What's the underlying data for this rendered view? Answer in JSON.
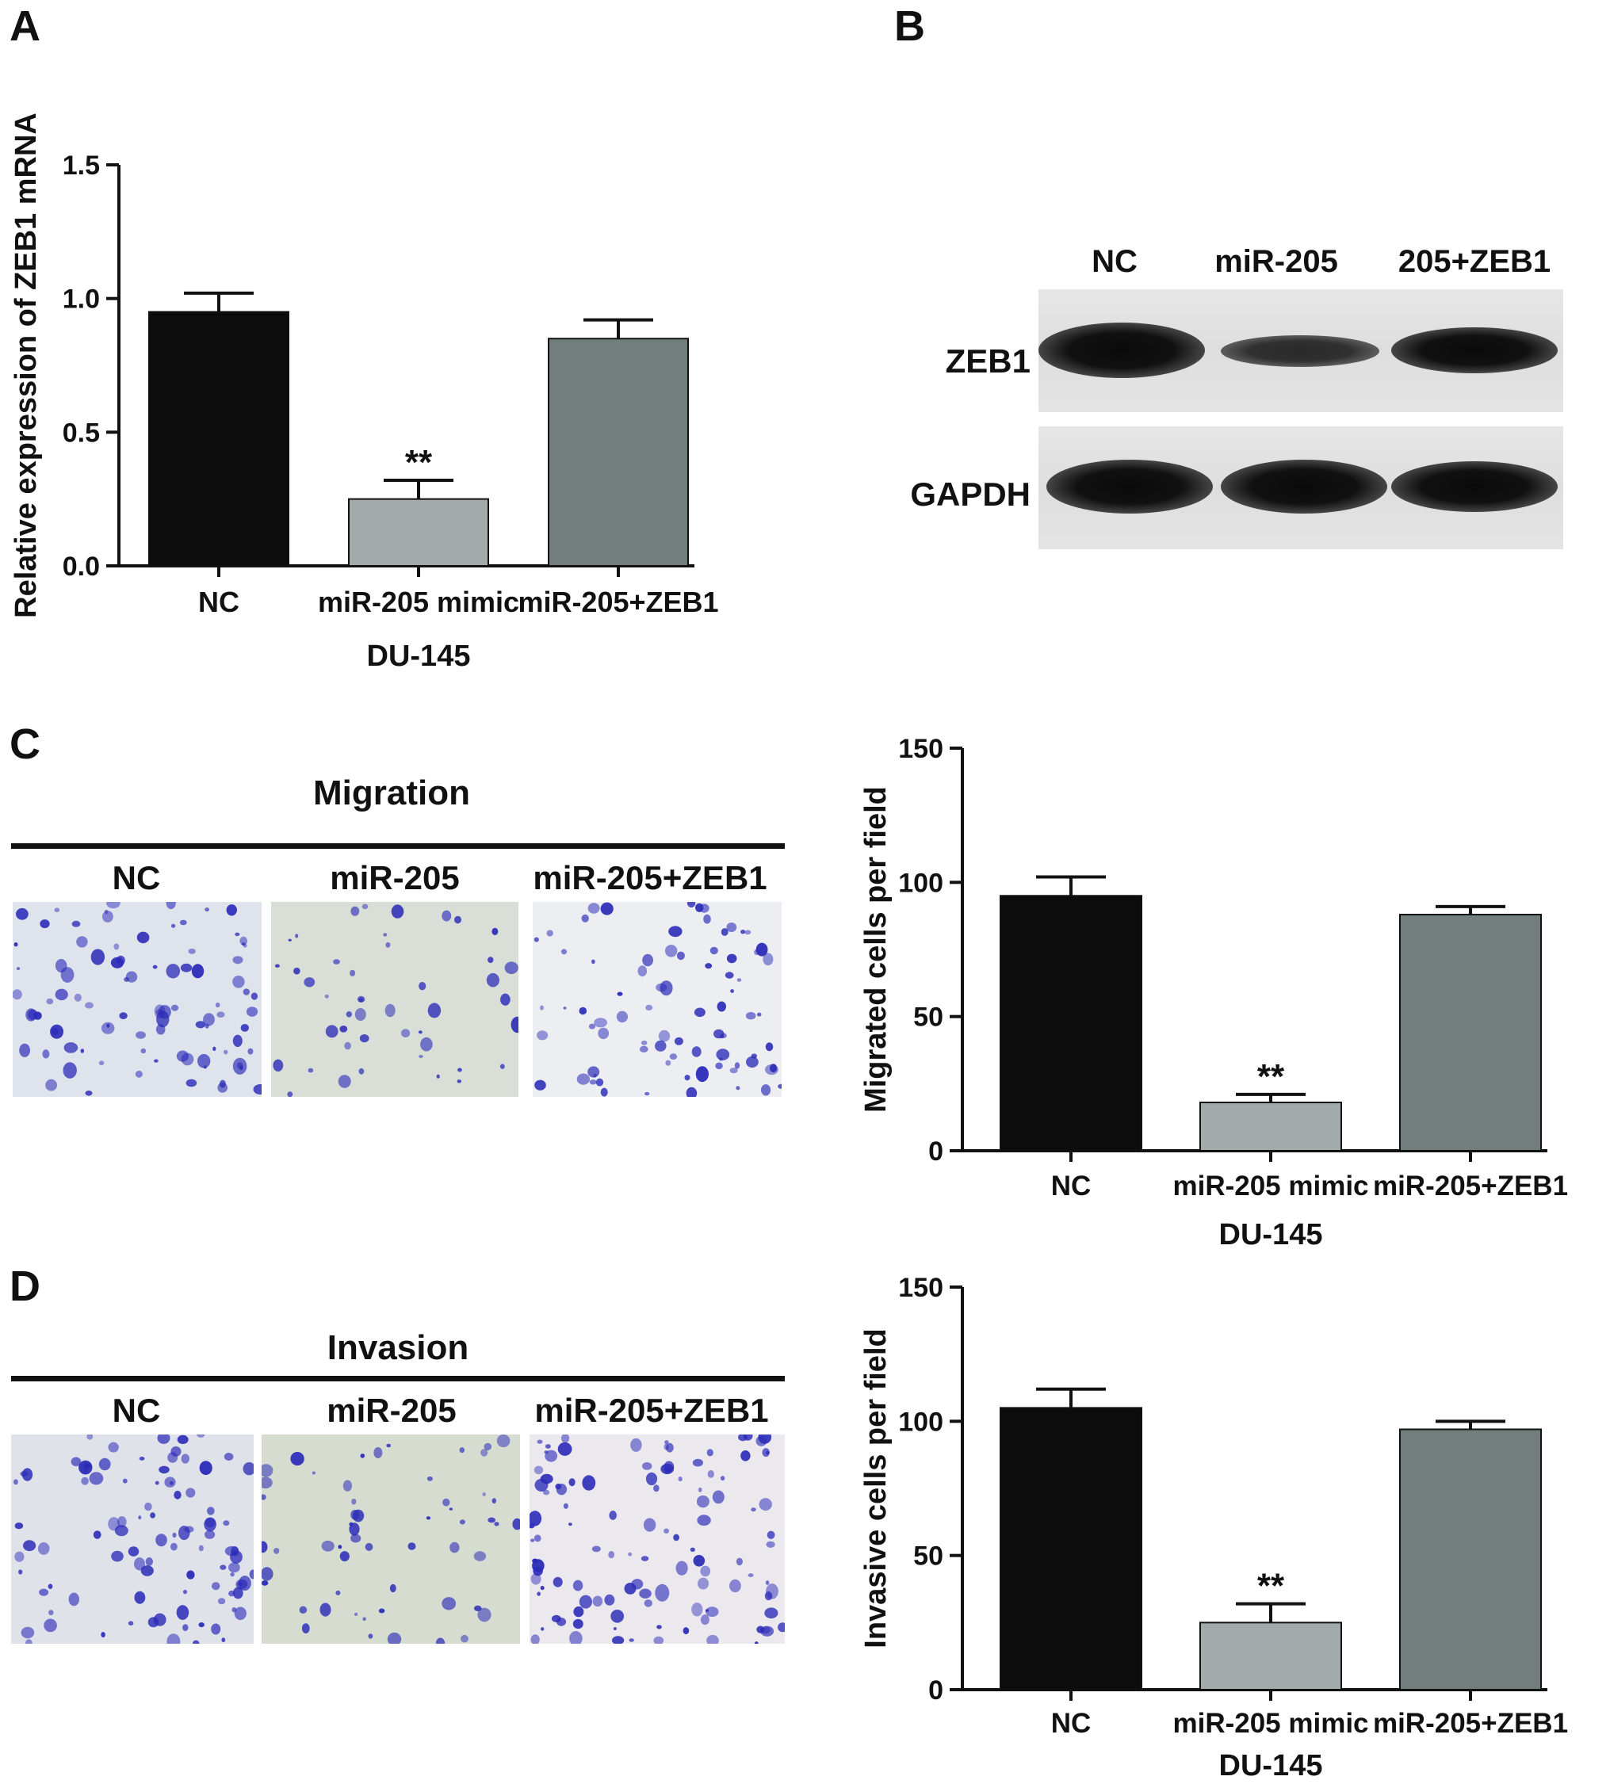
{
  "panels": {
    "A": "A",
    "B": "B",
    "C": "C",
    "D": "D"
  },
  "colors": {
    "nc": "#0c0c0c",
    "mimic": "#a2abaa",
    "zeb": "#727d7d",
    "stain": "#2b2bb8"
  },
  "chart_data": [
    {
      "panel": "A",
      "type": "bar",
      "title": "",
      "ylabel": "Relative expression of ZEB1 mRNA",
      "xlabel": "DU-145",
      "categories": [
        "NC",
        "miR-205 mimic",
        "miR-205+ZEB1"
      ],
      "values": [
        0.95,
        0.25,
        0.85
      ],
      "errors": [
        0.07,
        0.07,
        0.07
      ],
      "significance": [
        "",
        "**",
        ""
      ],
      "ylim": [
        0,
        1.5
      ],
      "yticks": [
        "0.0",
        "0.5",
        "1.0",
        "1.5"
      ],
      "grid": false
    },
    {
      "panel": "C",
      "type": "bar",
      "title": "",
      "ylabel": "Migrated cells per field",
      "xlabel": "DU-145",
      "categories": [
        "NC",
        "miR-205 mimic",
        "miR-205+ZEB1"
      ],
      "values": [
        95,
        18,
        88
      ],
      "errors": [
        7,
        3,
        3
      ],
      "significance": [
        "",
        "**",
        ""
      ],
      "ylim": [
        0,
        150
      ],
      "yticks": [
        "0",
        "50",
        "100",
        "150"
      ],
      "grid": false
    },
    {
      "panel": "D",
      "type": "bar",
      "title": "",
      "ylabel": "Invasive cells per field",
      "xlabel": "DU-145",
      "categories": [
        "NC",
        "miR-205 mimic",
        "miR-205+ZEB1"
      ],
      "values": [
        105,
        25,
        97
      ],
      "errors": [
        7,
        7,
        3
      ],
      "significance": [
        "",
        "**",
        ""
      ],
      "ylim": [
        0,
        150
      ],
      "yticks": [
        "0",
        "50",
        "100",
        "150"
      ],
      "grid": false
    }
  ],
  "blot": {
    "lanes": [
      "NC",
      "miR-205",
      "205+ZEB1"
    ],
    "rows": [
      "ZEB1",
      "GAPDH"
    ],
    "band_intensity": {
      "ZEB1": [
        1.0,
        0.45,
        0.85
      ],
      "GAPDH": [
        1.0,
        1.0,
        1.0
      ]
    }
  },
  "migration": {
    "title": "Migration",
    "groups": [
      "NC",
      "miR-205",
      "miR-205+ZEB1"
    ]
  },
  "invasion": {
    "title": "Invasion",
    "groups": [
      "NC",
      "miR-205",
      "miR-205+ZEB1"
    ]
  }
}
